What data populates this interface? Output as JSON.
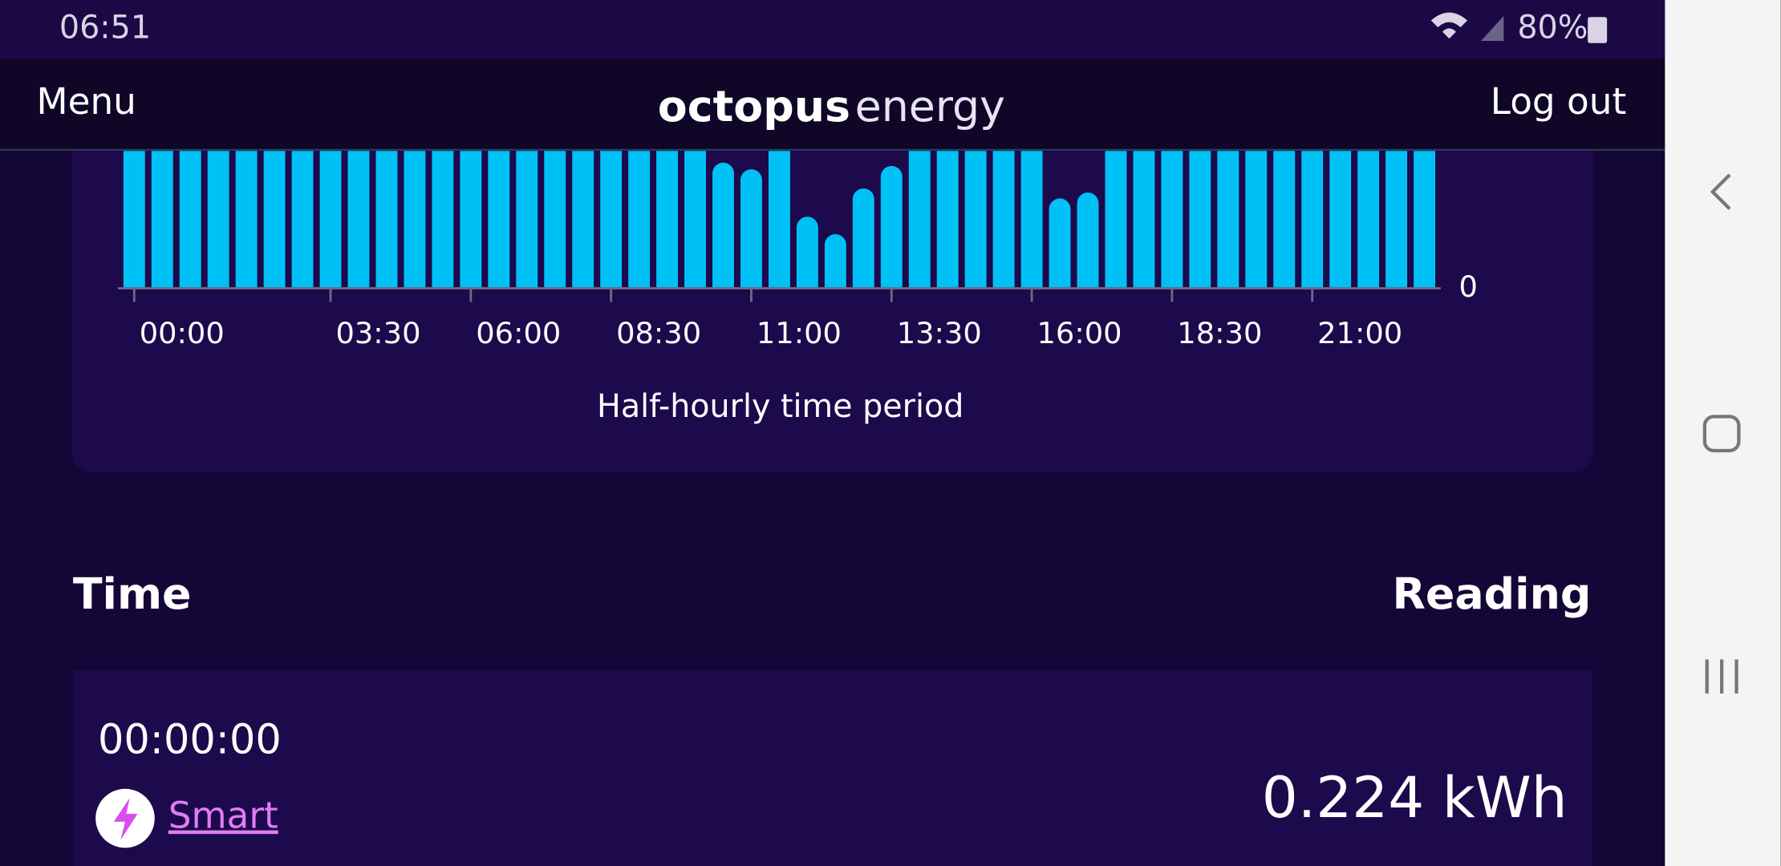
{
  "status_bar": {
    "time": "06:51",
    "battery": "80%"
  },
  "header": {
    "menu": "Menu",
    "logo": [
      "octopus",
      "energy"
    ],
    "logout": "Log out"
  },
  "chart_data": {
    "type": "bar",
    "xlabel": "Half-hourly time period",
    "categories": [
      "00:00",
      null,
      null,
      null,
      null,
      null,
      null,
      "03:30",
      null,
      null,
      null,
      null,
      "06:00",
      null,
      null,
      null,
      null,
      "08:30",
      null,
      null,
      null,
      null,
      "11:00",
      null,
      null,
      null,
      null,
      "13:30",
      null,
      null,
      null,
      null,
      "16:00",
      null,
      null,
      null,
      null,
      "18:30",
      null,
      null,
      null,
      null,
      "21:00",
      null,
      null,
      null,
      null
    ],
    "values": [
      0.224,
      0.22,
      0.22,
      0.22,
      0.22,
      0.22,
      0.22,
      0.22,
      0.22,
      0.22,
      0.22,
      0.22,
      0.22,
      0.22,
      0.22,
      0.22,
      0.22,
      0.22,
      0.22,
      0.22,
      0.22,
      0.151,
      0.143,
      0.22,
      0.086,
      0.065,
      0.12,
      0.147,
      0.22,
      0.22,
      0.22,
      0.22,
      0.22,
      0.108,
      0.115,
      0.22,
      0.22,
      0.22,
      0.22,
      0.22,
      0.22,
      0.22,
      0.22,
      0.22,
      0.22,
      0.22,
      0.22
    ],
    "color": "#00c1f5",
    "ylim": [
      0,
      0.3
    ],
    "yticks": [
      0
    ]
  },
  "table": {
    "headers": [
      "Time",
      "Reading"
    ],
    "rows": [
      {
        "time": "00:00:00",
        "source": "Smart",
        "reading": "0.224 kWh"
      }
    ]
  }
}
